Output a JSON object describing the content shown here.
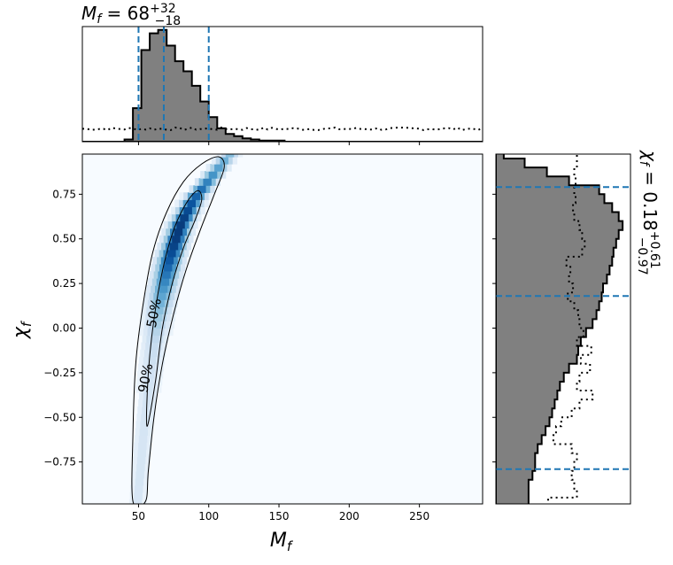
{
  "chart_data": [
    {
      "type": "heatmap",
      "name": "joint-posterior",
      "xlabel": "M_f",
      "ylabel": "χ_f",
      "xlim": [
        10,
        295
      ],
      "ylim": [
        -0.985,
        0.975
      ],
      "xticks": [
        50,
        100,
        150,
        200,
        250
      ],
      "yticks": [
        -0.75,
        -0.5,
        -0.25,
        0.0,
        0.25,
        0.5,
        0.75
      ],
      "ytick_labels": [
        "−0.75",
        "−0.50",
        "−0.25",
        "0.00",
        "0.25",
        "0.50",
        "0.75"
      ],
      "colormap": "Blues",
      "density_ridge": [
        {
          "x": 50,
          "y": -0.92
        },
        {
          "x": 54,
          "y": -0.55
        },
        {
          "x": 59,
          "y": -0.2
        },
        {
          "x": 65,
          "y": 0.12
        },
        {
          "x": 72,
          "y": 0.38
        },
        {
          "x": 80,
          "y": 0.58
        },
        {
          "x": 89,
          "y": 0.72
        },
        {
          "x": 97,
          "y": 0.8
        }
      ],
      "peak": {
        "x": 80,
        "y": 0.55
      },
      "contours": [
        {
          "label": "50%",
          "points": [
            {
              "x": 56,
              "y": -0.55
            },
            {
              "x": 57,
              "y": -0.25
            },
            {
              "x": 61,
              "y": 0.05
            },
            {
              "x": 67,
              "y": 0.32
            },
            {
              "x": 75,
              "y": 0.55
            },
            {
              "x": 84,
              "y": 0.7
            },
            {
              "x": 92,
              "y": 0.77
            },
            {
              "x": 95,
              "y": 0.72
            },
            {
              "x": 90,
              "y": 0.6
            },
            {
              "x": 82,
              "y": 0.45
            },
            {
              "x": 74,
              "y": 0.25
            },
            {
              "x": 67,
              "y": 0.0
            },
            {
              "x": 62,
              "y": -0.3
            }
          ]
        },
        {
          "label": "90%",
          "points": [
            {
              "x": 46,
              "y": -0.97
            },
            {
              "x": 46,
              "y": -0.6
            },
            {
              "x": 48,
              "y": -0.2
            },
            {
              "x": 53,
              "y": 0.12
            },
            {
              "x": 60,
              "y": 0.42
            },
            {
              "x": 70,
              "y": 0.65
            },
            {
              "x": 82,
              "y": 0.82
            },
            {
              "x": 95,
              "y": 0.92
            },
            {
              "x": 107,
              "y": 0.96
            },
            {
              "x": 111,
              "y": 0.9
            },
            {
              "x": 104,
              "y": 0.75
            },
            {
              "x": 94,
              "y": 0.55
            },
            {
              "x": 84,
              "y": 0.33
            },
            {
              "x": 75,
              "y": 0.08
            },
            {
              "x": 67,
              "y": -0.2
            },
            {
              "x": 61,
              "y": -0.5
            },
            {
              "x": 57,
              "y": -0.8
            },
            {
              "x": 55,
              "y": -0.97
            }
          ]
        }
      ]
    },
    {
      "type": "bar",
      "name": "M_f-marginal",
      "title": "M_f = 68",
      "title_sup": "+32",
      "title_sub": "−18",
      "bin_width": 6,
      "bin_starts": [
        34,
        40,
        46,
        52,
        58,
        64,
        70,
        76,
        82,
        88,
        94,
        100,
        106,
        112,
        118,
        124,
        130,
        136,
        142,
        148,
        154
      ],
      "values": [
        0.0,
        0.02,
        0.3,
        0.82,
        0.97,
        1.0,
        0.86,
        0.72,
        0.63,
        0.5,
        0.36,
        0.22,
        0.12,
        0.07,
        0.05,
        0.03,
        0.02,
        0.01,
        0.01,
        0.01,
        0.0
      ],
      "ylim": [
        0,
        1.03
      ],
      "prior_level": 0.115,
      "lines": [
        {
          "label": "lower",
          "value": 50
        },
        {
          "label": "median",
          "value": 68
        },
        {
          "label": "upper",
          "value": 100
        }
      ]
    },
    {
      "type": "bar",
      "name": "chi_f-marginal",
      "orientation": "horizontal",
      "title": "χ_f = 0.18",
      "title_sup": "+0.61",
      "title_sub": "−0.97",
      "bin_height": 0.05,
      "bin_starts": [
        0.95,
        0.9,
        0.85,
        0.8,
        0.75,
        0.7,
        0.65,
        0.6,
        0.55,
        0.5,
        0.45,
        0.4,
        0.35,
        0.3,
        0.25,
        0.2,
        0.15,
        0.1,
        0.05,
        0.0,
        -0.05,
        -0.1,
        -0.15,
        -0.2,
        -0.25,
        -0.3,
        -0.35,
        -0.4,
        -0.45,
        -0.5,
        -0.55,
        -0.6,
        -0.65,
        -0.7,
        -0.75,
        -0.8,
        -0.85,
        -0.9,
        -0.95,
        -1.0
      ],
      "values": [
        0.06,
        0.22,
        0.39,
        0.56,
        0.79,
        0.83,
        0.89,
        0.94,
        0.97,
        0.94,
        0.92,
        0.9,
        0.89,
        0.87,
        0.85,
        0.82,
        0.81,
        0.79,
        0.77,
        0.74,
        0.69,
        0.65,
        0.63,
        0.62,
        0.56,
        0.52,
        0.49,
        0.47,
        0.45,
        0.43,
        0.41,
        0.38,
        0.35,
        0.32,
        0.3,
        0.3,
        0.28,
        0.25,
        0.25,
        0.25
      ],
      "xlim": [
        0,
        1.03
      ],
      "prior_values": [
        0.62,
        0.62,
        0.6,
        0.61,
        0.6,
        0.61,
        0.59,
        0.6,
        0.64,
        0.66,
        0.68,
        0.66,
        0.54,
        0.57,
        0.56,
        0.59,
        0.55,
        0.6,
        0.63,
        0.64,
        0.67,
        0.62,
        0.73,
        0.65,
        0.72,
        0.64,
        0.62,
        0.74,
        0.64,
        0.58,
        0.5,
        0.46,
        0.44,
        0.58,
        0.62,
        0.6,
        0.58,
        0.6,
        0.62,
        0.4
      ],
      "lines": [
        {
          "label": "lower",
          "value": -0.79
        },
        {
          "label": "median",
          "value": 0.18
        },
        {
          "label": "upper",
          "value": 0.79
        }
      ]
    }
  ],
  "colors": {
    "hist_fill": "#808080",
    "hist_edge": "#000000",
    "interval_line": "#1f77b4",
    "contour": "#000000",
    "cmap_low": "#f7fbff",
    "cmap_high": "#08306b"
  }
}
